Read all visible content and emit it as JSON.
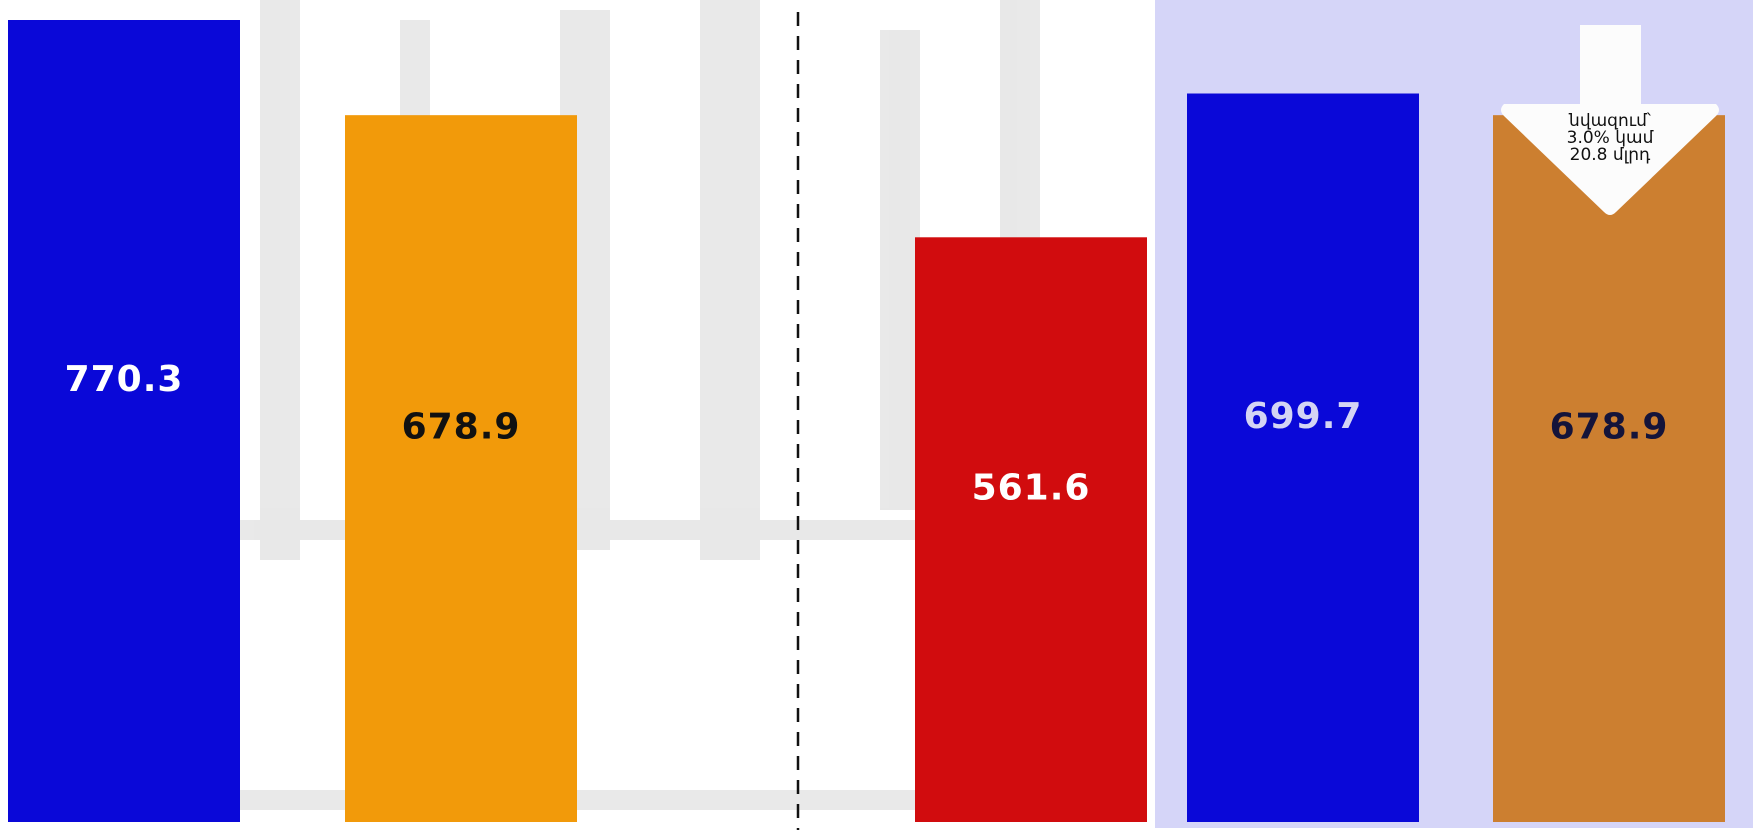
{
  "chart_data": {
    "type": "bar",
    "values": [
      770.3,
      678.9,
      561.6,
      699.7,
      678.9
    ],
    "colors": [
      "#0a08d8",
      "#f29a0a",
      "#d10c0e",
      "#0a08d8",
      "#cc7f30"
    ],
    "label_colors": [
      "#ffffff",
      "#111111",
      "#ffffff",
      "#d4d4f4",
      "#14143a"
    ],
    "annotation": [
      "նվազում՝",
      "3.0% կամ",
      "20.8  մլրդ"
    ]
  }
}
